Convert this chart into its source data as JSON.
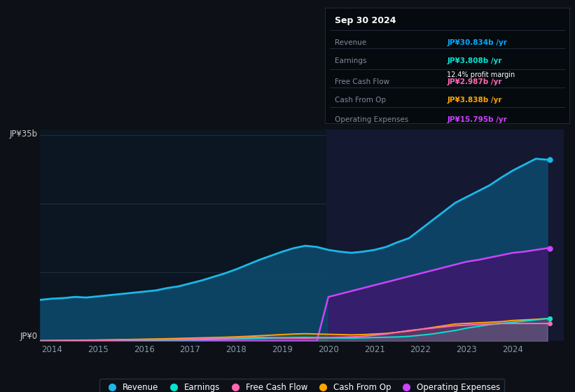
{
  "bg_color": "#0d1117",
  "plot_bg_color": "#0b1622",
  "info_box_bg": "#050a0f",
  "title_date": "Sep 30 2024",
  "info_rows": [
    {
      "label": "Revenue",
      "value": "JP¥30.834b /yr",
      "value_color": "#00aaff"
    },
    {
      "label": "Earnings",
      "value": "JP¥3.808b /yr",
      "value_color": "#00e5d4",
      "sub": "12.4% profit margin"
    },
    {
      "label": "Free Cash Flow",
      "value": "JP¥2.987b /yr",
      "value_color": "#ff69b4"
    },
    {
      "label": "Cash From Op",
      "value": "JP¥3.838b /yr",
      "value_color": "#ffa500"
    },
    {
      "label": "Operating Expenses",
      "value": "JP¥15.795b /yr",
      "value_color": "#cc44ff"
    }
  ],
  "years": [
    2013.75,
    2014.0,
    2014.25,
    2014.5,
    2014.75,
    2015.0,
    2015.25,
    2015.5,
    2015.75,
    2016.0,
    2016.25,
    2016.5,
    2016.75,
    2017.0,
    2017.25,
    2017.5,
    2017.75,
    2018.0,
    2018.25,
    2018.5,
    2018.75,
    2019.0,
    2019.25,
    2019.5,
    2019.75,
    2020.0,
    2020.25,
    2020.5,
    2020.75,
    2021.0,
    2021.25,
    2021.5,
    2021.75,
    2022.0,
    2022.25,
    2022.5,
    2022.75,
    2023.0,
    2023.25,
    2023.5,
    2023.75,
    2024.0,
    2024.25,
    2024.5,
    2024.75
  ],
  "revenue": [
    7.0,
    7.2,
    7.3,
    7.5,
    7.4,
    7.6,
    7.8,
    8.0,
    8.2,
    8.4,
    8.6,
    9.0,
    9.3,
    9.8,
    10.3,
    10.9,
    11.5,
    12.2,
    13.0,
    13.8,
    14.5,
    15.2,
    15.8,
    16.2,
    16.0,
    15.5,
    15.2,
    15.0,
    15.2,
    15.5,
    16.0,
    16.8,
    17.5,
    19.0,
    20.5,
    22.0,
    23.5,
    24.5,
    25.5,
    26.5,
    27.8,
    29.0,
    30.0,
    31.0,
    30.834
  ],
  "earnings": [
    0.05,
    0.06,
    0.07,
    0.08,
    0.09,
    0.1,
    0.12,
    0.13,
    0.14,
    0.15,
    0.16,
    0.18,
    0.2,
    0.22,
    0.25,
    0.28,
    0.32,
    0.36,
    0.4,
    0.45,
    0.5,
    0.55,
    0.6,
    0.62,
    0.58,
    0.55,
    0.52,
    0.5,
    0.55,
    0.6,
    0.65,
    0.7,
    0.8,
    1.0,
    1.2,
    1.5,
    1.8,
    2.2,
    2.5,
    2.8,
    3.0,
    3.2,
    3.4,
    3.6,
    3.808
  ],
  "free_cash_flow": [
    0.0,
    0.02,
    0.05,
    0.08,
    0.1,
    0.12,
    0.14,
    0.16,
    0.18,
    0.2,
    0.22,
    0.25,
    0.28,
    0.32,
    0.38,
    0.45,
    0.5,
    0.55,
    0.6,
    0.62,
    0.58,
    0.55,
    0.52,
    0.5,
    0.55,
    0.6,
    0.65,
    0.7,
    0.8,
    1.0,
    1.2,
    1.5,
    1.8,
    2.0,
    2.2,
    2.4,
    2.6,
    2.7,
    2.8,
    2.9,
    2.987,
    2.987,
    2.987,
    2.987,
    2.987
  ],
  "cash_from_op": [
    0.08,
    0.1,
    0.12,
    0.14,
    0.16,
    0.18,
    0.22,
    0.25,
    0.28,
    0.32,
    0.36,
    0.4,
    0.45,
    0.5,
    0.55,
    0.6,
    0.65,
    0.72,
    0.8,
    0.9,
    1.0,
    1.1,
    1.2,
    1.25,
    1.2,
    1.15,
    1.1,
    1.05,
    1.1,
    1.2,
    1.3,
    1.5,
    1.7,
    2.0,
    2.3,
    2.6,
    2.9,
    3.0,
    3.1,
    3.2,
    3.3,
    3.5,
    3.6,
    3.7,
    3.838
  ],
  "op_expenses": [
    0,
    0,
    0,
    0,
    0,
    0,
    0,
    0,
    0,
    0,
    0,
    0,
    0,
    0,
    0,
    0,
    0,
    0,
    0,
    0,
    0,
    0,
    0,
    0,
    0,
    7.5,
    8.0,
    8.5,
    9.0,
    9.5,
    10.0,
    10.5,
    11.0,
    11.5,
    12.0,
    12.5,
    13.0,
    13.5,
    13.8,
    14.2,
    14.6,
    15.0,
    15.2,
    15.5,
    15.795
  ],
  "revenue_color": "#1ab8e8",
  "earnings_color": "#00e5d4",
  "fcf_color": "#ff69b4",
  "cashop_color": "#ffa500",
  "opex_color": "#cc44ff",
  "revenue_fill_color": "#0d4a6e",
  "opex_fill_color": "#3a1a6e",
  "ytop_label": "JP¥35b",
  "y0_label": "JP¥0",
  "ylim": [
    0,
    36
  ],
  "xlim": [
    2013.75,
    2025.1
  ],
  "xticks": [
    2014,
    2015,
    2016,
    2017,
    2018,
    2019,
    2020,
    2021,
    2022,
    2023,
    2024
  ],
  "legend_labels": [
    "Revenue",
    "Earnings",
    "Free Cash Flow",
    "Cash From Op",
    "Operating Expenses"
  ],
  "legend_colors": [
    "#1ab8e8",
    "#00e5d4",
    "#ff69b4",
    "#ffa500",
    "#cc44ff"
  ],
  "highlight_x_start": 2019.95,
  "highlight_color": "#141830",
  "gridline_color": "#1e2d3d",
  "gridline_y": [
    0,
    11.67,
    23.33,
    35
  ]
}
